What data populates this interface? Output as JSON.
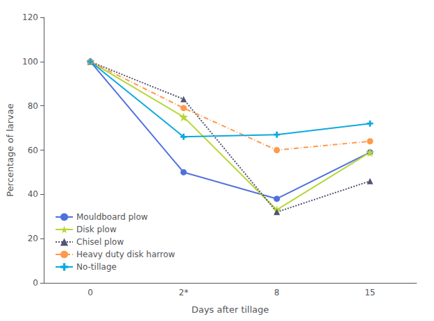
{
  "chart_data": {
    "type": "line",
    "categories": [
      "0",
      "2*",
      "8",
      "15"
    ],
    "xlabel": "Days after tillage",
    "ylabel": "Percentage of larvae",
    "ylim": [
      0,
      120
    ],
    "yticks": [
      0,
      20,
      40,
      60,
      80,
      100,
      120
    ],
    "grid": false,
    "legend": "lower left",
    "series": [
      {
        "name": "Mouldboard plow",
        "values": [
          100,
          50,
          38,
          59
        ],
        "marker": "circle",
        "line_style": "solid"
      },
      {
        "name": "Disk plow",
        "values": [
          100,
          75,
          33,
          59
        ],
        "marker": "star",
        "line_style": "solid"
      },
      {
        "name": "Chisel plow",
        "values": [
          100,
          83,
          32,
          46
        ],
        "marker": "triangle",
        "line_style": "dotted"
      },
      {
        "name": "Heavy duty disk harrow",
        "values": [
          100,
          79,
          60,
          64
        ],
        "marker": "circle",
        "line_style": "dashdot"
      },
      {
        "name": "No-tillage",
        "values": [
          100,
          66,
          67,
          72
        ],
        "marker": "plus",
        "line_style": "solid"
      }
    ]
  }
}
